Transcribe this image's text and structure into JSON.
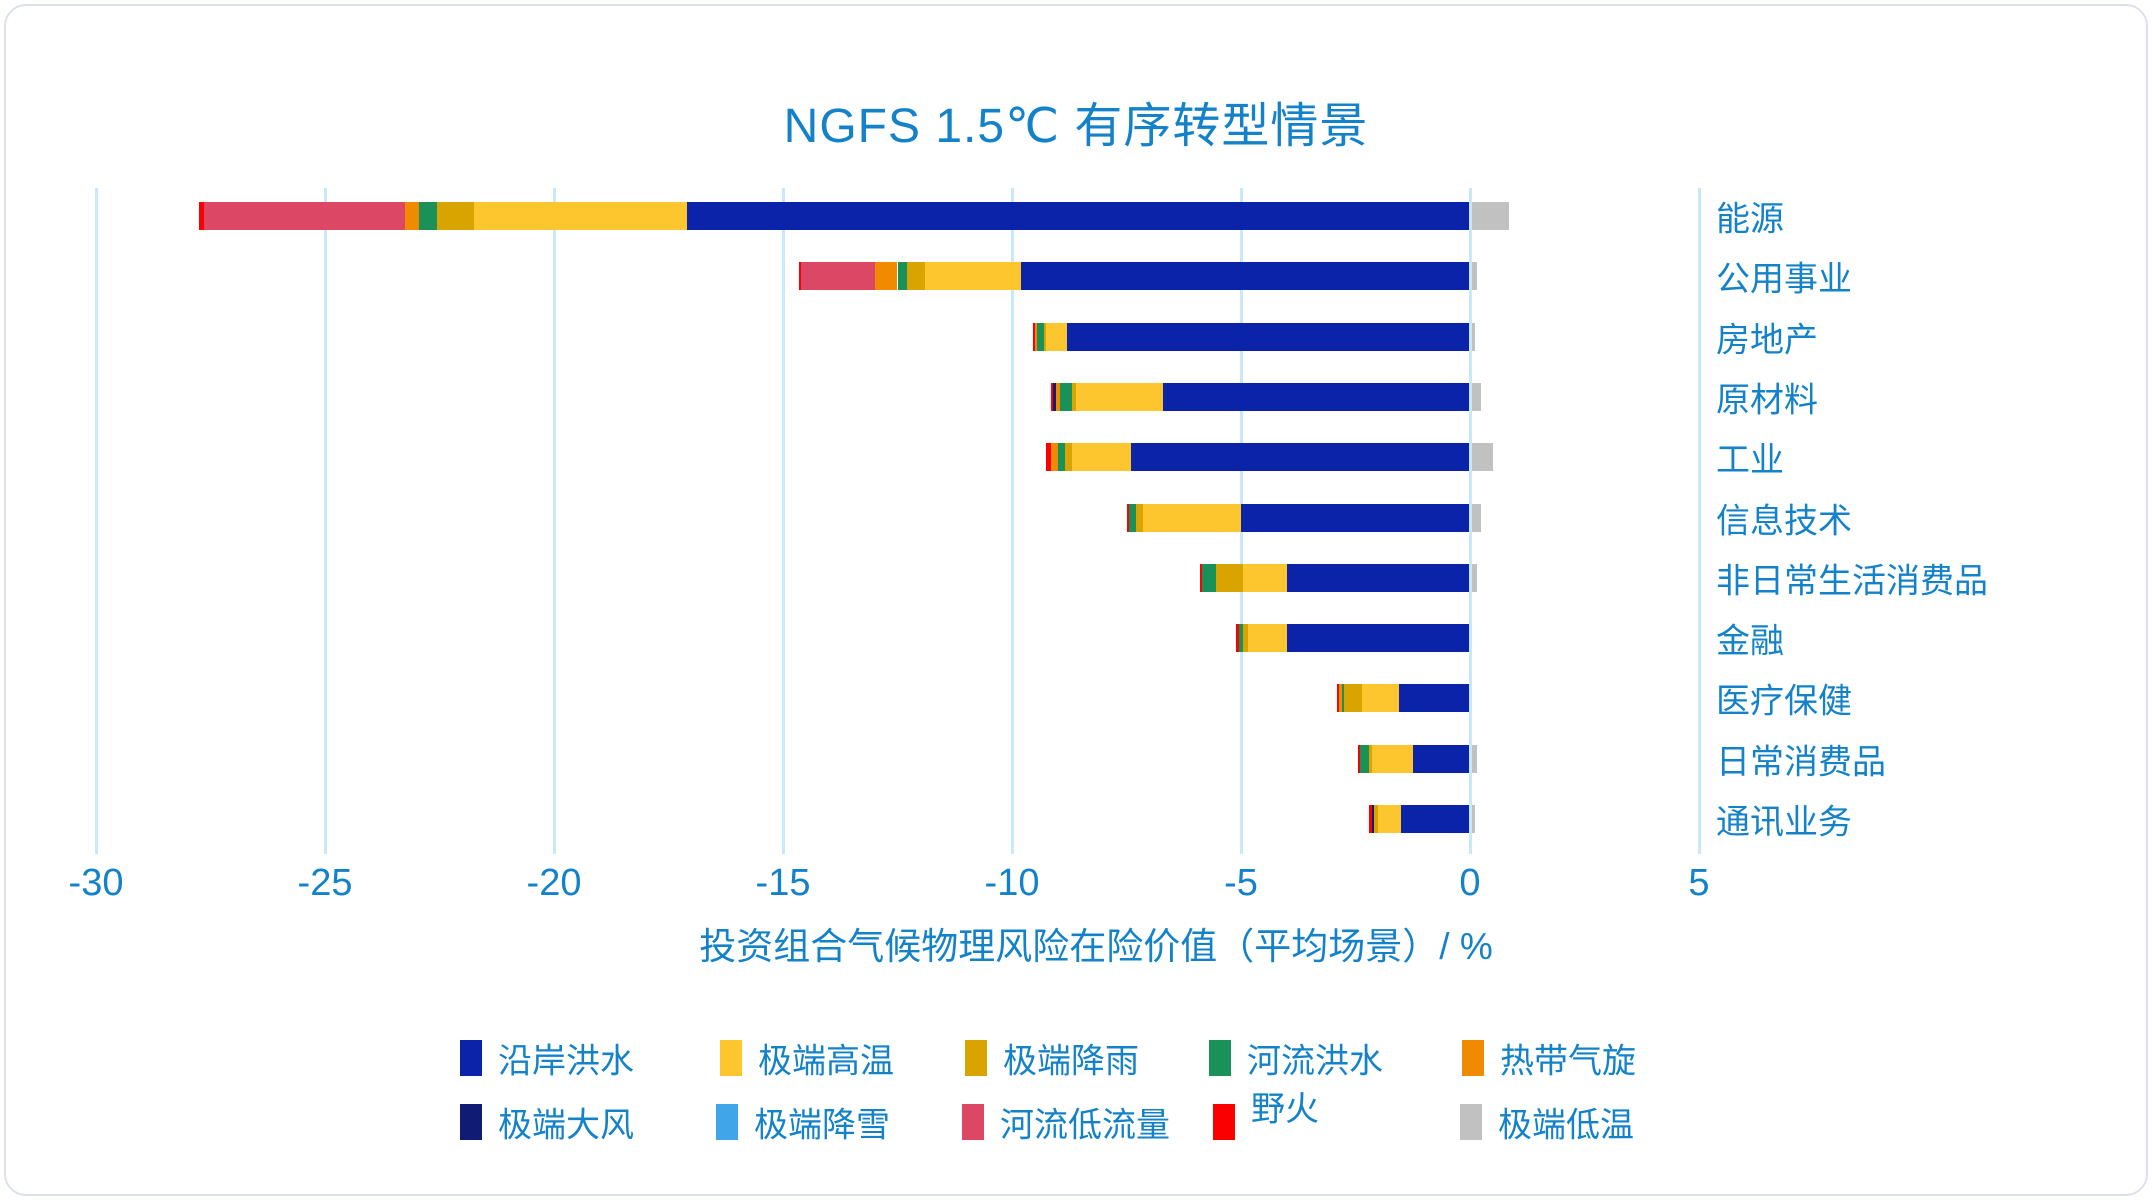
{
  "title": "NGFS 1.5℃ 有序转型情景",
  "axis": {
    "xlabel": "投资组合气候物理风险在险价值（平均场景）/ %",
    "xticks": [
      -30,
      -25,
      -20,
      -15,
      -10,
      -5,
      0,
      5
    ],
    "xlim": [
      -30,
      5
    ]
  },
  "text_color": "#1482c8",
  "gridline_color": "#c9e9fa",
  "chart_data": {
    "type": "bar",
    "orientation": "horizontal",
    "stacked": true,
    "title": "NGFS 1.5℃ 有序转型情景",
    "xlabel": "投资组合气候物理风险在险价值（平均场景）/ %",
    "xlim": [
      -30,
      5
    ],
    "xticks": [
      -30,
      -25,
      -20,
      -15,
      -10,
      -5,
      0,
      5
    ],
    "grid": "vertical",
    "legend_position": "bottom",
    "categories": [
      "能源",
      "公用事业",
      "房地产",
      "原材料",
      "工业",
      "信息技术",
      "非日常生活消费品",
      "金融",
      "医疗保健",
      "日常消费品",
      "通讯业务"
    ],
    "series": [
      {
        "name": "沿岸洪水",
        "color": "#0a23a8",
        "values": [
          -17.1,
          -9.8,
          -8.8,
          -6.7,
          -7.4,
          -5.0,
          -4.0,
          -4.0,
          -1.55,
          -1.25,
          -1.5
        ]
      },
      {
        "name": "极端高温",
        "color": "#fdc62f",
        "values": [
          -4.65,
          -2.1,
          -0.45,
          -1.9,
          -1.3,
          -2.15,
          -0.95,
          -0.85,
          -0.8,
          -0.9,
          -0.5
        ]
      },
      {
        "name": "极端降雨",
        "color": "#d9a300",
        "values": [
          -0.8,
          -0.4,
          -0.05,
          -0.1,
          -0.15,
          -0.15,
          -0.6,
          -0.1,
          -0.4,
          -0.05,
          -0.1
        ]
      },
      {
        "name": "河流洪水",
        "color": "#1a9158",
        "values": [
          -0.4,
          -0.2,
          -0.15,
          -0.25,
          -0.15,
          -0.15,
          -0.3,
          -0.1,
          -0.05,
          -0.2,
          0
        ]
      },
      {
        "name": "热带气旋",
        "color": "#f08b00",
        "values": [
          -0.3,
          -0.5,
          -0.05,
          -0.1,
          -0.15,
          0,
          0,
          0,
          -0.05,
          0,
          0
        ]
      },
      {
        "name": "极端大风",
        "color": "#101b74",
        "values": [
          0,
          0,
          0,
          -0.05,
          0,
          0,
          0,
          0,
          0,
          0,
          -0.05
        ]
      },
      {
        "name": "极端降雪",
        "color": "#41a5e9",
        "values": [
          0,
          0,
          0,
          0,
          0,
          0,
          0,
          0,
          0,
          0,
          0
        ]
      },
      {
        "name": "河流低流量",
        "color": "#dd4766",
        "values": [
          -4.4,
          -1.6,
          0,
          0,
          0,
          0,
          0,
          0,
          0,
          0,
          0
        ]
      },
      {
        "name": "野火",
        "color": "#fb0000",
        "values": [
          -0.1,
          -0.05,
          -0.05,
          -0.05,
          -0.1,
          -0.05,
          -0.05,
          -0.05,
          -0.05,
          -0.05,
          -0.05
        ]
      },
      {
        "name": "极端低温",
        "color": "#c2c1c1",
        "values": [
          0.85,
          0.15,
          0.1,
          0.25,
          0.5,
          0.25,
          0.15,
          0.05,
          0.05,
          0.15,
          0.1
        ]
      }
    ]
  },
  "legend": {
    "rows": [
      [
        {
          "label": "沿岸洪水",
          "color": "#0a23a8"
        },
        {
          "label": "极端高温",
          "color": "#fdc62f"
        },
        {
          "label": "极端降雨",
          "color": "#d9a300"
        },
        {
          "label": "河流洪水",
          "color": "#1a9158"
        },
        {
          "label": "热带气旋",
          "color": "#f08b00"
        }
      ],
      [
        {
          "label": "极端大风",
          "color": "#101b74"
        },
        {
          "label": "极端降雪",
          "color": "#41a5e9"
        },
        {
          "label": "河流低流量",
          "color": "#dd4766"
        },
        {
          "label": "野火",
          "color": "#fb0000",
          "raised": true
        },
        {
          "label": "极端低温",
          "color": "#c2c1c1"
        }
      ]
    ]
  }
}
